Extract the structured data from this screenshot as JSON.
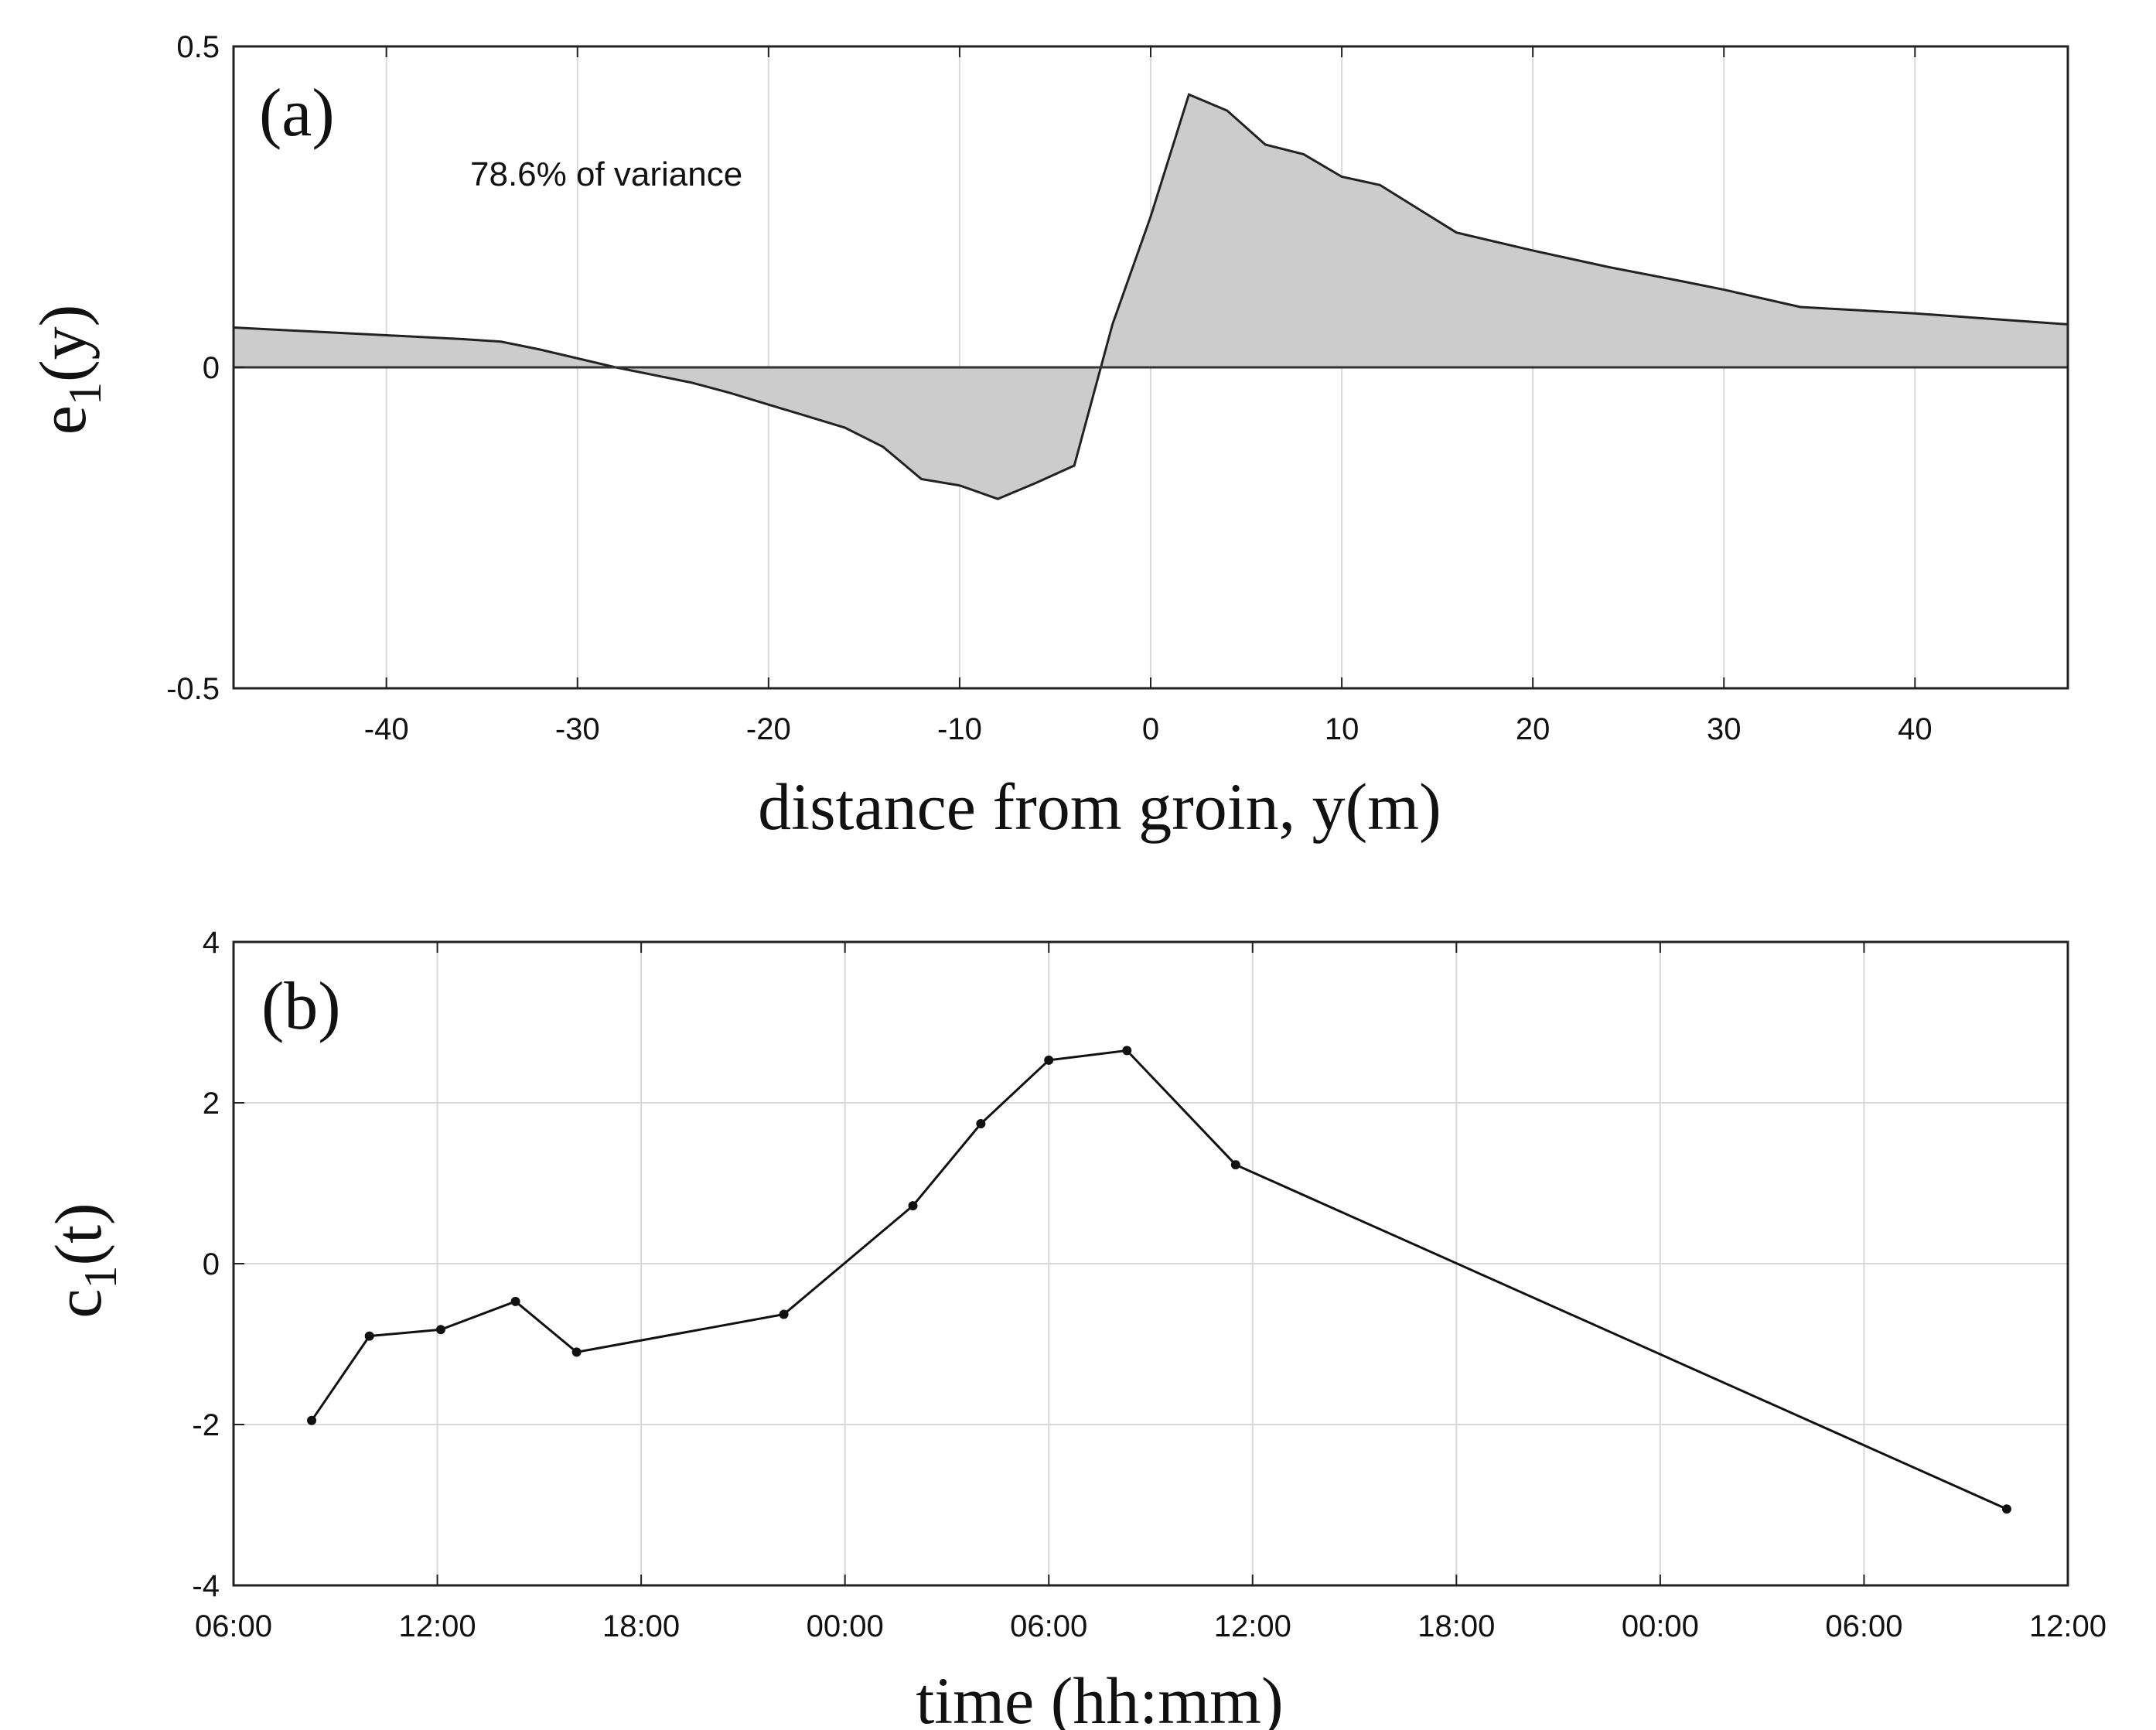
{
  "chart_data": [
    {
      "type": "area",
      "panel_label": "(a)",
      "annotation": "78.6% of variance",
      "xlabel": "distance from groin, y(m)",
      "ylabel_main": "e",
      "ylabel_sub": "1",
      "ylabel_tail": "(y)",
      "xlim": [
        -48,
        48
      ],
      "ylim": [
        -0.5,
        0.5
      ],
      "x_ticks": [
        -40,
        -30,
        -20,
        -10,
        0,
        10,
        20,
        30,
        40
      ],
      "x_tick_labels": [
        "-40",
        "-30",
        "-20",
        "-10",
        "0",
        "10",
        "20",
        "30",
        "40"
      ],
      "y_ticks": [
        -0.5,
        0,
        0.5
      ],
      "y_tick_labels": [
        "-0.5",
        "0",
        "0.5"
      ],
      "grid": "x",
      "fill_color": "#cccccc",
      "x": [
        -48,
        -44,
        -40,
        -36,
        -34,
        -32,
        -30,
        -28,
        -26,
        -24,
        -22,
        -20,
        -18,
        -16,
        -14,
        -12,
        -10,
        -8,
        -6,
        -4,
        -2,
        0,
        2,
        4,
        6,
        8,
        10,
        12,
        14,
        16,
        20,
        24,
        28,
        30,
        34,
        40,
        48
      ],
      "y": [
        0.062,
        0.056,
        0.05,
        0.044,
        0.04,
        0.028,
        0.014,
        0.0,
        -0.012,
        -0.024,
        -0.04,
        -0.058,
        -0.076,
        -0.094,
        -0.124,
        -0.174,
        -0.184,
        -0.205,
        -0.18,
        -0.153,
        0.067,
        0.235,
        0.425,
        0.4,
        0.347,
        0.332,
        0.297,
        0.284,
        0.247,
        0.21,
        0.182,
        0.156,
        0.133,
        0.121,
        0.094,
        0.084,
        0.067
      ]
    },
    {
      "type": "line",
      "panel_label": "(b)",
      "xlabel": "time (hh:mm)",
      "ylabel_main": "c",
      "ylabel_sub": "1",
      "ylabel_tail": "(t)",
      "xlim": [
        0,
        54
      ],
      "ylim": [
        -4,
        4
      ],
      "x_ticks": [
        0,
        6,
        12,
        18,
        24,
        30,
        36,
        42,
        48,
        54
      ],
      "x_tick_labels": [
        "06:00",
        "12:00",
        "18:00",
        "00:00",
        "06:00",
        "12:00",
        "18:00",
        "00:00",
        "06:00",
        "12:00"
      ],
      "y_ticks": [
        -4,
        -2,
        0,
        2,
        4
      ],
      "y_tick_labels": [
        "-4",
        "-2",
        "0",
        "2",
        "4"
      ],
      "grid": "both",
      "x": [
        2.3,
        4.0,
        6.1,
        8.3,
        10.1,
        16.2,
        20.0,
        22.0,
        24.0,
        26.3,
        29.5,
        52.2
      ],
      "y": [
        -1.95,
        -0.9,
        -0.82,
        -0.47,
        -1.1,
        -0.63,
        0.72,
        1.74,
        2.53,
        2.65,
        1.23,
        -3.05
      ]
    }
  ]
}
